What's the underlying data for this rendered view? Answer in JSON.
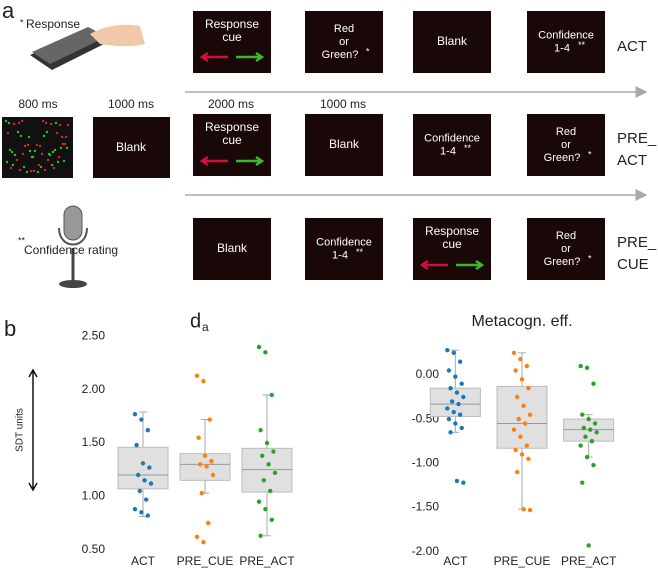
{
  "panel_a": {
    "label": "a",
    "response": "Response",
    "response_mark": "*",
    "confidence": "Confidence rating",
    "confidence_mark": "**",
    "timings": [
      "800 ms",
      "1000 ms",
      "2000 ms",
      "1000 ms"
    ],
    "left_blank": "Blank",
    "rows": [
      {
        "label": [
          "ACT"
        ],
        "boxes": [
          {
            "lines": [
              "Response",
              "cue"
            ]
          },
          {
            "lines": [
              "Red",
              "or",
              "Green?"
            ],
            "mark": "*"
          },
          {
            "lines": [
              "Blank"
            ]
          },
          {
            "lines": [
              "Confidence",
              "1-4"
            ],
            "mark": "**"
          }
        ]
      },
      {
        "label": [
          "PRE_",
          "ACT"
        ],
        "boxes": [
          {
            "lines": [
              "Response",
              "cue"
            ]
          },
          {
            "lines": [
              "Blank"
            ]
          },
          {
            "lines": [
              "Confidence",
              "1-4"
            ],
            "mark": "**"
          },
          {
            "lines": [
              "Red",
              "or",
              "Green?"
            ],
            "mark": "*"
          }
        ]
      },
      {
        "label": [
          "PRE_",
          "CUE"
        ],
        "boxes": [
          {
            "lines": [
              "Blank"
            ]
          },
          {
            "lines": [
              "Confidence",
              "1-4"
            ],
            "mark": "**"
          },
          {
            "lines": [
              "Response",
              "cue"
            ]
          },
          {
            "lines": [
              "Red",
              "or",
              "Green?"
            ],
            "mark": "*"
          }
        ]
      }
    ]
  },
  "panel_b_label": "b",
  "chart_data": [
    {
      "type": "box",
      "title": "d",
      "title_subscript": "a",
      "ylabel": "SDT units",
      "ylim": [
        0.45,
        2.55
      ],
      "yticks": [
        {
          "value": 2.5,
          "label": "2.50"
        },
        {
          "value": 2.0,
          "label": "2.00"
        },
        {
          "value": 1.5,
          "label": "1.50"
        },
        {
          "value": 1.0,
          "label": "1.00"
        },
        {
          "value": 0.5,
          "label": "0.50"
        }
      ],
      "series": [
        {
          "name": "ACT",
          "color": "#1f77b4",
          "whisker_low": 0.81,
          "q1": 1.07,
          "median": 1.2,
          "q3": 1.46,
          "whisker_high": 1.79,
          "points": [
            1.77,
            1.72,
            1.62,
            1.48,
            1.31,
            1.27,
            1.2,
            1.15,
            1.12,
            1.05,
            0.97,
            0.88,
            0.85,
            0.82
          ]
        },
        {
          "name": "PRE_CUE",
          "color": "#ff7f0e",
          "whisker_low": 1.03,
          "q1": 1.15,
          "median": 1.3,
          "q3": 1.4,
          "whisker_high": 1.72,
          "points": [
            2.13,
            2.08,
            1.72,
            1.55,
            1.38,
            1.33,
            1.3,
            1.28,
            1.2,
            1.03,
            0.75,
            0.62,
            0.57
          ]
        },
        {
          "name": "PRE_ACT",
          "color": "#2ca02c",
          "whisker_low": 0.63,
          "q1": 1.04,
          "median": 1.25,
          "q3": 1.45,
          "whisker_high": 1.95,
          "points": [
            2.4,
            2.35,
            1.95,
            1.62,
            1.5,
            1.42,
            1.38,
            1.3,
            1.22,
            1.15,
            1.05,
            0.95,
            0.88,
            0.78,
            0.63
          ]
        }
      ]
    },
    {
      "type": "box",
      "title": "Metacogn. eff.",
      "ylim": [
        -2.05,
        0.35
      ],
      "yticks": [
        {
          "value": 0,
          "label": "0.00"
        },
        {
          "value": -0.5,
          "label": "-0.50"
        },
        {
          "value": -1,
          "label": "-1.00"
        },
        {
          "value": -1.5,
          "label": "-1.50"
        },
        {
          "value": -2,
          "label": "-2.00"
        }
      ],
      "series": [
        {
          "name": "ACT",
          "color": "#1f77b4",
          "whisker_low": -0.65,
          "q1": -0.47,
          "median": -0.33,
          "q3": -0.15,
          "whisker_high": 0.28,
          "points": [
            0.28,
            0.25,
            0.15,
            0.05,
            -0.02,
            -0.1,
            -0.15,
            -0.2,
            -0.25,
            -0.3,
            -0.33,
            -0.38,
            -0.42,
            -0.45,
            -0.5,
            -0.55,
            -0.6,
            -0.65,
            -1.2,
            -1.22
          ]
        },
        {
          "name": "PRE_CUE",
          "color": "#ff7f0e",
          "whisker_low": -1.52,
          "q1": -0.83,
          "median": -0.55,
          "q3": -0.13,
          "whisker_high": 0.25,
          "points": [
            0.25,
            0.18,
            0.1,
            0.05,
            -0.05,
            -0.15,
            -0.25,
            -0.35,
            -0.45,
            -0.5,
            -0.55,
            -0.62,
            -0.7,
            -0.8,
            -0.85,
            -0.9,
            -0.95,
            -1.1,
            -1.52,
            -1.53
          ]
        },
        {
          "name": "PRE_ACT",
          "color": "#2ca02c",
          "whisker_low": -0.93,
          "q1": -0.75,
          "median": -0.62,
          "q3": -0.5,
          "whisker_high": -0.45,
          "points": [
            0.1,
            0.08,
            -0.1,
            -0.45,
            -0.5,
            -0.55,
            -0.6,
            -0.62,
            -0.65,
            -0.7,
            -0.75,
            -0.8,
            -0.93,
            -1.02,
            -1.22,
            -1.93
          ]
        }
      ]
    }
  ]
}
